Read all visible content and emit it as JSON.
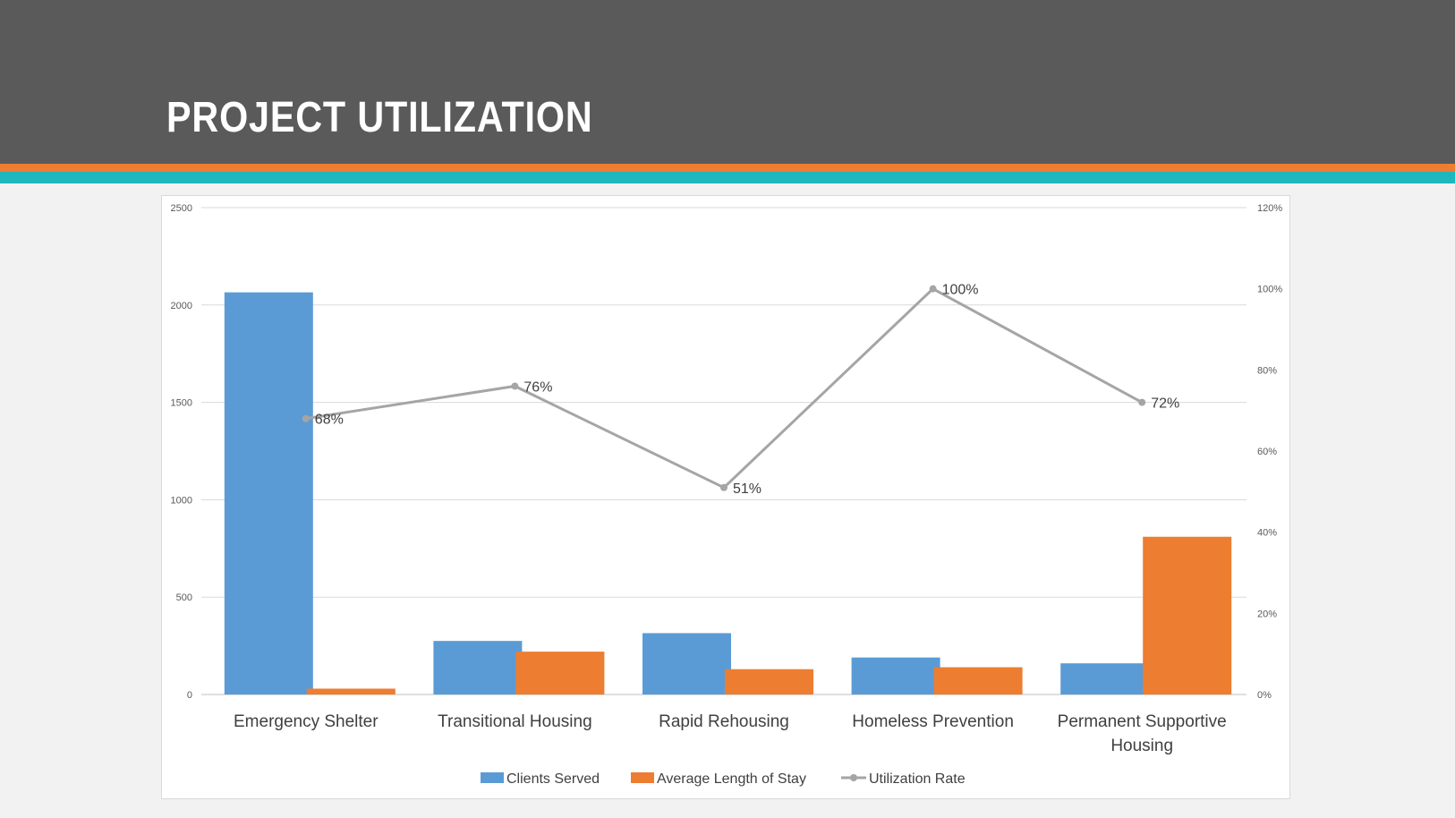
{
  "slide": {
    "title": "PROJECT UTILIZATION"
  },
  "colors": {
    "header": "#5a5a5a",
    "stripe_orange": "#ed7d31",
    "stripe_teal": "#1fb7bd",
    "clients": "#5b9bd5",
    "stay": "#ed7d31",
    "rate": "#a5a5a5"
  },
  "chart_data": {
    "type": "bar",
    "categories": [
      [
        "Emergency Shelter"
      ],
      [
        "Transitional Housing"
      ],
      [
        "Rapid Rehousing"
      ],
      [
        "Homeless Prevention"
      ],
      [
        "Permanent Supportive",
        "Housing"
      ]
    ],
    "series": [
      {
        "name": "Clients Served",
        "type": "bar",
        "axis": "left",
        "values": [
          2065,
          275,
          315,
          190,
          160
        ]
      },
      {
        "name": "Average Length of Stay",
        "type": "bar",
        "axis": "left",
        "values": [
          30,
          220,
          130,
          140,
          810
        ]
      },
      {
        "name": "Utilization Rate",
        "type": "line",
        "axis": "right",
        "values": [
          68,
          76,
          51,
          100,
          72
        ],
        "labels": [
          "68%",
          "76%",
          "51%",
          "100%",
          "72%"
        ]
      }
    ],
    "y_left": {
      "min": 0,
      "max": 2500,
      "ticks": [
        "0",
        "500",
        "1000",
        "1500",
        "2000",
        "2500"
      ]
    },
    "y_right": {
      "min": 0,
      "max": 120,
      "ticks": [
        "0%",
        "20%",
        "40%",
        "60%",
        "80%",
        "100%",
        "120%"
      ]
    },
    "grid": true,
    "legend": "bottom"
  }
}
